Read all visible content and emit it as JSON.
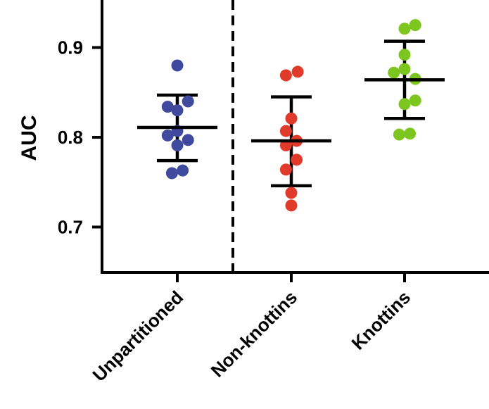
{
  "chart_data": {
    "type": "scatter",
    "title": "",
    "xlabel": "",
    "ylabel": "AUC",
    "ylim": [
      0.65,
      0.95
    ],
    "yticks": [
      0.7,
      0.8,
      0.9
    ],
    "ytick_labels": [
      "0.7",
      "0.8",
      "0.9"
    ],
    "grid": false,
    "categories": [
      "Unpartitioned",
      "Non-knottins",
      "Knottins"
    ],
    "divider_after_category": "Unpartitioned",
    "series": [
      {
        "category": "Unpartitioned",
        "color": "#3f4a9e",
        "points": [
          {
            "x": 0.0,
            "y": 0.88
          },
          {
            "x": -0.18,
            "y": 0.834
          },
          {
            "x": 0.0,
            "y": 0.83
          },
          {
            "x": 0.2,
            "y": 0.84
          },
          {
            "x": -0.18,
            "y": 0.802
          },
          {
            "x": 0.0,
            "y": 0.807
          },
          {
            "x": 0.2,
            "y": 0.797
          },
          {
            "x": 0.0,
            "y": 0.791
          },
          {
            "x": -0.1,
            "y": 0.76
          },
          {
            "x": 0.1,
            "y": 0.763
          }
        ],
        "mean": 0.811,
        "sd_upper": 0.847,
        "sd_lower": 0.774
      },
      {
        "category": "Non-knottins",
        "color": "#e03a2a",
        "points": [
          {
            "x": -0.1,
            "y": 0.869
          },
          {
            "x": 0.12,
            "y": 0.873
          },
          {
            "x": 0.0,
            "y": 0.821
          },
          {
            "x": -0.1,
            "y": 0.807
          },
          {
            "x": -0.1,
            "y": 0.791
          },
          {
            "x": 0.1,
            "y": 0.796
          },
          {
            "x": 0.1,
            "y": 0.775
          },
          {
            "x": -0.1,
            "y": 0.764
          },
          {
            "x": 0.0,
            "y": 0.738
          },
          {
            "x": 0.0,
            "y": 0.724
          }
        ],
        "mean": 0.796,
        "sd_upper": 0.845,
        "sd_lower": 0.746
      },
      {
        "category": "Knottins",
        "color": "#7cc61f",
        "points": [
          {
            "x": 0.0,
            "y": 0.921
          },
          {
            "x": 0.2,
            "y": 0.925
          },
          {
            "x": 0.0,
            "y": 0.892
          },
          {
            "x": -0.2,
            "y": 0.872
          },
          {
            "x": 0.0,
            "y": 0.876
          },
          {
            "x": 0.2,
            "y": 0.865
          },
          {
            "x": 0.2,
            "y": 0.841
          },
          {
            "x": 0.0,
            "y": 0.837
          },
          {
            "x": -0.1,
            "y": 0.803
          },
          {
            "x": 0.1,
            "y": 0.804
          }
        ],
        "mean": 0.864,
        "sd_upper": 0.907,
        "sd_lower": 0.821
      }
    ]
  }
}
